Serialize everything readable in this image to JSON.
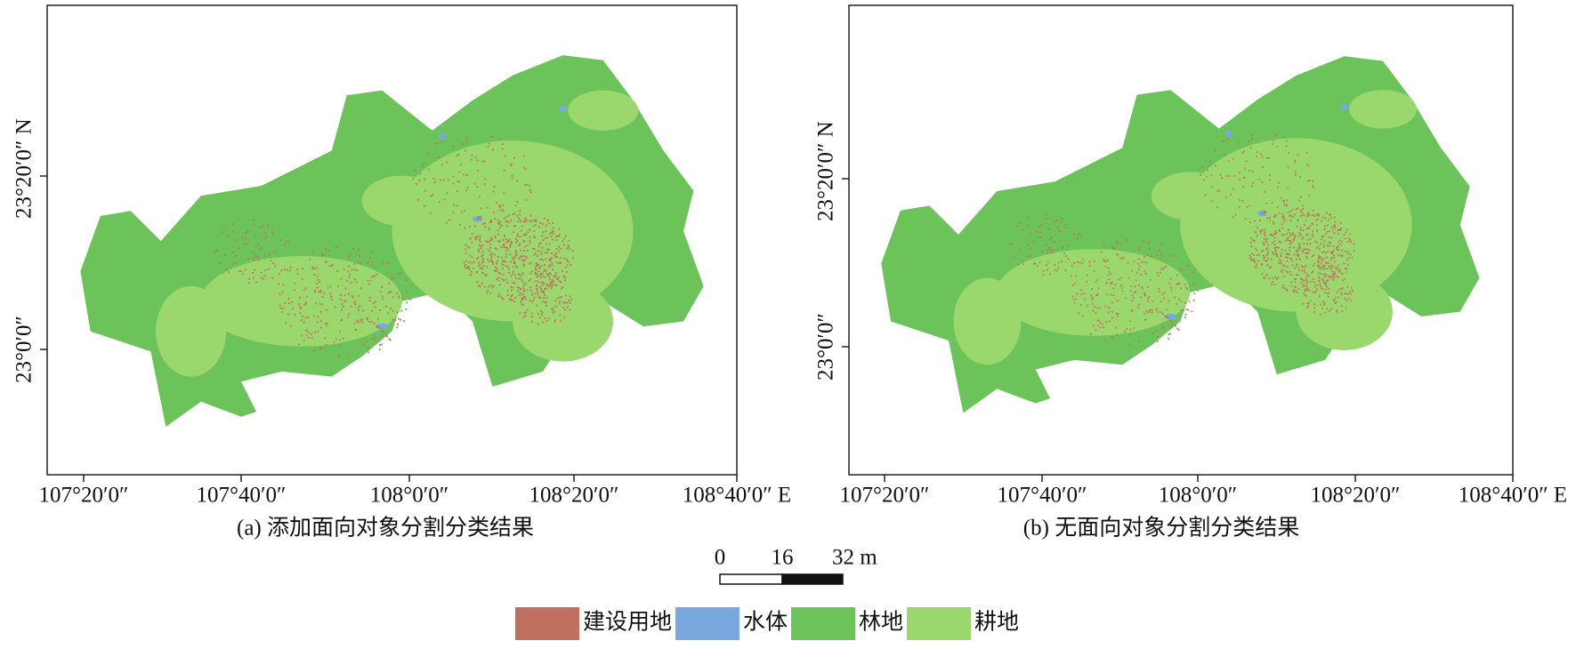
{
  "panels": [
    {
      "caption": "(a) 添加面向对象分割分类结果",
      "x_labels": [
        "107°20′0″",
        "107°40′0″",
        "108°0′0″",
        "108°20′0″",
        "108°40′0″ E"
      ],
      "y_labels": [
        "23°20′0″ N",
        "23°0′0″"
      ]
    },
    {
      "caption": "(b) 无面向对象分割分类结果",
      "x_labels": [
        "107°20′0″",
        "107°40′0″",
        "108°0′0″",
        "108°20′0″",
        "108°40′0″ E"
      ],
      "y_labels": [
        "23°20′0″ N",
        "23°0′0″"
      ]
    }
  ],
  "scale_bar": {
    "labels": [
      "0",
      "16",
      "32 m"
    ]
  },
  "legend": [
    {
      "label": "建设用地",
      "color": "#c0705f"
    },
    {
      "label": "水体",
      "color": "#78a8de"
    },
    {
      "label": "林地",
      "color": "#6cc35a"
    },
    {
      "label": "耕地",
      "color": "#9ad86e"
    }
  ]
}
